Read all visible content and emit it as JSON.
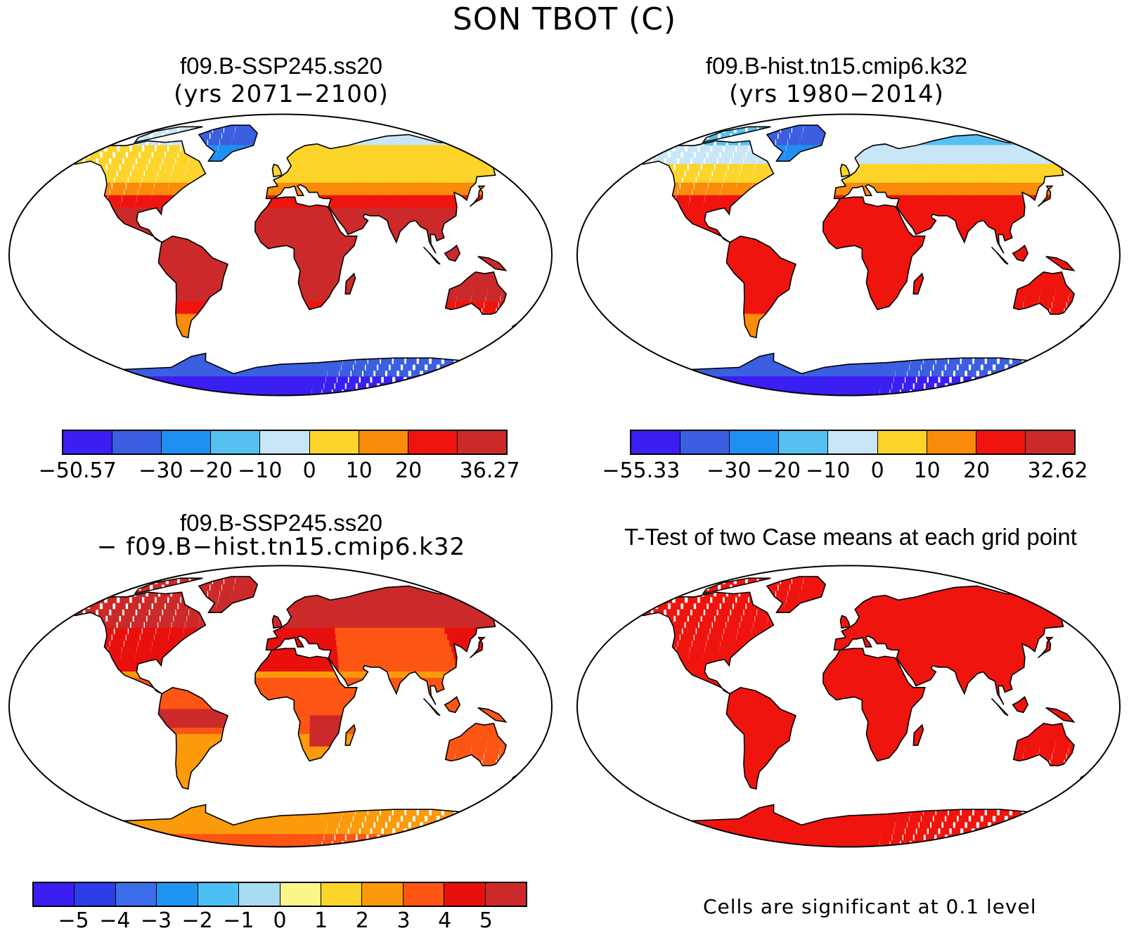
{
  "figure_title": "SON TBOT (C)",
  "panels": {
    "top_left": {
      "title": "f09.B-SSP245.ss20",
      "subtitle": "(yrs 2071−2100)"
    },
    "top_right": {
      "title": "f09.B-hist.tn15.cmip6.k32",
      "subtitle": "(yrs 1980−2014)"
    },
    "bottom_left": {
      "title": "f09.B-SSP245.ss20",
      "subtitle": "− f09.B−hist.tn15.cmip6.k32"
    },
    "bottom_right": {
      "title": "T-Test of two Case means at each grid point"
    }
  },
  "colorbars": {
    "abs_left": {
      "colors": [
        "#3a1ef2",
        "#3b5fe0",
        "#1f8ff2",
        "#56c0f0",
        "#c8e6f6",
        "#fcd42a",
        "#fb8b0a",
        "#f0140e",
        "#cc2a2a"
      ],
      "labels": [
        "−50.57",
        "−30",
        "−20",
        "−10",
        "0",
        "10",
        "20",
        "36.27"
      ]
    },
    "abs_right": {
      "colors": [
        "#3a1ef2",
        "#3b5fe0",
        "#1f8ff2",
        "#56c0f0",
        "#c8e6f6",
        "#fcd42a",
        "#fb8b0a",
        "#f0140e",
        "#cc2a2a"
      ],
      "labels": [
        "−55.33",
        "−30",
        "−20",
        "−10",
        "0",
        "10",
        "20",
        "32.62"
      ]
    },
    "diff": {
      "colors": [
        "#3a1ef2",
        "#2a3de6",
        "#3b6ee8",
        "#1f95f2",
        "#4cc0f4",
        "#a9dcf2",
        "#fcf58a",
        "#fcd42a",
        "#fb9a0a",
        "#fc5514",
        "#e8100c",
        "#cc2a2a"
      ],
      "labels": [
        "−5",
        "−4",
        "−3",
        "−2",
        "−1",
        "0",
        "1",
        "2",
        "3",
        "4",
        "5"
      ]
    }
  },
  "footnote": "Cells are significant at 0.1 level"
}
